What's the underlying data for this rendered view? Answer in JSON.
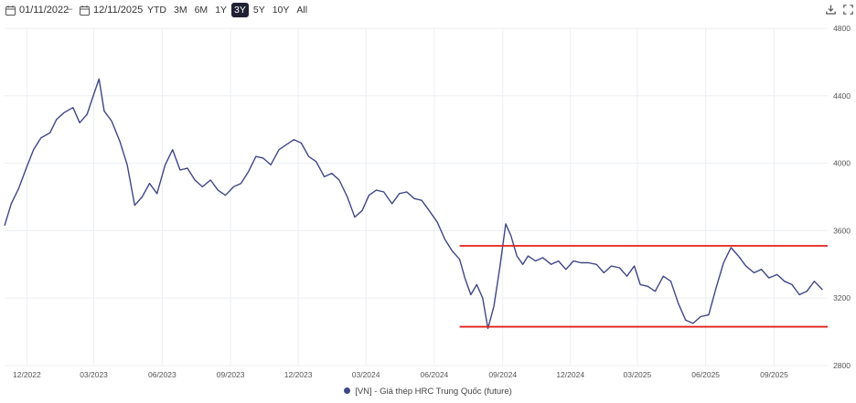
{
  "toolbar": {
    "start_date": "01/11/2022",
    "end_date": "12/11/2025",
    "separator": "–",
    "ranges": [
      "YTD",
      "3M",
      "6M",
      "1Y",
      "3Y",
      "5Y",
      "10Y",
      "All"
    ],
    "active_range": "3Y",
    "icons": [
      "calendar-icon",
      "download-icon",
      "fullscreen-icon"
    ]
  },
  "chart_data": {
    "type": "line",
    "title": "",
    "xlabel": "",
    "ylabel": "",
    "ylim": [
      2800,
      4800
    ],
    "y_ticks": [
      2800,
      3200,
      3600,
      4000,
      4400,
      4800
    ],
    "x_ticks": [
      "12/2022",
      "03/2023",
      "06/2023",
      "09/2023",
      "12/2023",
      "03/2024",
      "06/2024",
      "09/2024",
      "12/2024",
      "03/2025",
      "06/2025",
      "09/2025"
    ],
    "x_tick_dates": [
      "2022-12-01",
      "2023-03-01",
      "2023-06-01",
      "2023-09-01",
      "2023-12-01",
      "2024-03-01",
      "2024-06-01",
      "2024-09-01",
      "2024-12-01",
      "2025-03-01",
      "2025-06-01",
      "2025-09-01"
    ],
    "xlim": [
      "2022-11-01",
      "2025-11-12"
    ],
    "grid": true,
    "legend_position": "bottom",
    "series": [
      {
        "name": "[VN] - Giá thép HRC Trung Quốc (future)",
        "color": "#3f4785",
        "x": [
          "2022-11-01",
          "2022-11-10",
          "2022-11-20",
          "2022-12-01",
          "2022-12-10",
          "2022-12-20",
          "2023-01-01",
          "2023-01-10",
          "2023-01-20",
          "2023-02-01",
          "2023-02-10",
          "2023-02-20",
          "2023-03-01",
          "2023-03-08",
          "2023-03-15",
          "2023-03-25",
          "2023-04-05",
          "2023-04-15",
          "2023-04-25",
          "2023-05-05",
          "2023-05-15",
          "2023-05-25",
          "2023-06-05",
          "2023-06-15",
          "2023-06-25",
          "2023-07-05",
          "2023-07-15",
          "2023-07-25",
          "2023-08-05",
          "2023-08-15",
          "2023-08-25",
          "2023-09-05",
          "2023-09-15",
          "2023-09-25",
          "2023-10-05",
          "2023-10-15",
          "2023-10-25",
          "2023-11-05",
          "2023-11-15",
          "2023-11-25",
          "2023-12-05",
          "2023-12-15",
          "2023-12-25",
          "2024-01-05",
          "2024-01-15",
          "2024-01-25",
          "2024-02-05",
          "2024-02-15",
          "2024-02-25",
          "2024-03-05",
          "2024-03-15",
          "2024-03-25",
          "2024-04-05",
          "2024-04-15",
          "2024-04-25",
          "2024-05-05",
          "2024-05-15",
          "2024-05-25",
          "2024-06-05",
          "2024-06-15",
          "2024-06-25",
          "2024-07-05",
          "2024-07-12",
          "2024-07-20",
          "2024-07-28",
          "2024-08-05",
          "2024-08-12",
          "2024-08-20",
          "2024-08-28",
          "2024-09-05",
          "2024-09-12",
          "2024-09-20",
          "2024-09-28",
          "2024-10-05",
          "2024-10-15",
          "2024-10-25",
          "2024-11-05",
          "2024-11-15",
          "2024-11-25",
          "2024-12-05",
          "2024-12-15",
          "2024-12-25",
          "2025-01-05",
          "2025-01-15",
          "2025-01-25",
          "2025-02-05",
          "2025-02-15",
          "2025-02-25",
          "2025-03-05",
          "2025-03-15",
          "2025-03-25",
          "2025-04-05",
          "2025-04-15",
          "2025-04-25",
          "2025-05-05",
          "2025-05-15",
          "2025-05-25",
          "2025-06-05",
          "2025-06-15",
          "2025-06-25",
          "2025-07-05",
          "2025-07-15",
          "2025-07-25",
          "2025-08-05",
          "2025-08-15",
          "2025-08-25",
          "2025-09-05",
          "2025-09-15",
          "2025-09-25",
          "2025-10-05",
          "2025-10-15",
          "2025-10-25",
          "2025-11-05"
        ],
        "values": [
          3630,
          3760,
          3850,
          3980,
          4080,
          4150,
          4180,
          4260,
          4300,
          4330,
          4240,
          4290,
          4410,
          4500,
          4310,
          4250,
          4130,
          3990,
          3750,
          3800,
          3880,
          3820,
          3990,
          4080,
          3960,
          3970,
          3900,
          3860,
          3900,
          3840,
          3810,
          3860,
          3880,
          3950,
          4040,
          4030,
          3990,
          4080,
          4110,
          4140,
          4120,
          4040,
          4010,
          3920,
          3940,
          3900,
          3800,
          3680,
          3720,
          3810,
          3840,
          3830,
          3760,
          3820,
          3830,
          3790,
          3780,
          3720,
          3650,
          3550,
          3480,
          3430,
          3320,
          3220,
          3280,
          3200,
          3020,
          3150,
          3380,
          3640,
          3570,
          3450,
          3400,
          3450,
          3420,
          3440,
          3400,
          3420,
          3370,
          3420,
          3410,
          3410,
          3400,
          3350,
          3390,
          3380,
          3330,
          3390,
          3280,
          3270,
          3240,
          3330,
          3300,
          3170,
          3070,
          3050,
          3090,
          3100,
          3260,
          3410,
          3500,
          3450,
          3390,
          3350,
          3370,
          3320,
          3340,
          3300,
          3280,
          3220,
          3240,
          3300,
          3250
        ]
      }
    ],
    "annotations": [
      {
        "type": "horizontal_segment",
        "color": "#e0201b",
        "x_start": "2024-07-05",
        "x_end": "2025-11-12",
        "y": 3510
      },
      {
        "type": "horizontal_segment",
        "color": "#e0201b",
        "x_start": "2024-07-05",
        "x_end": "2025-11-12",
        "y": 3030
      }
    ]
  }
}
